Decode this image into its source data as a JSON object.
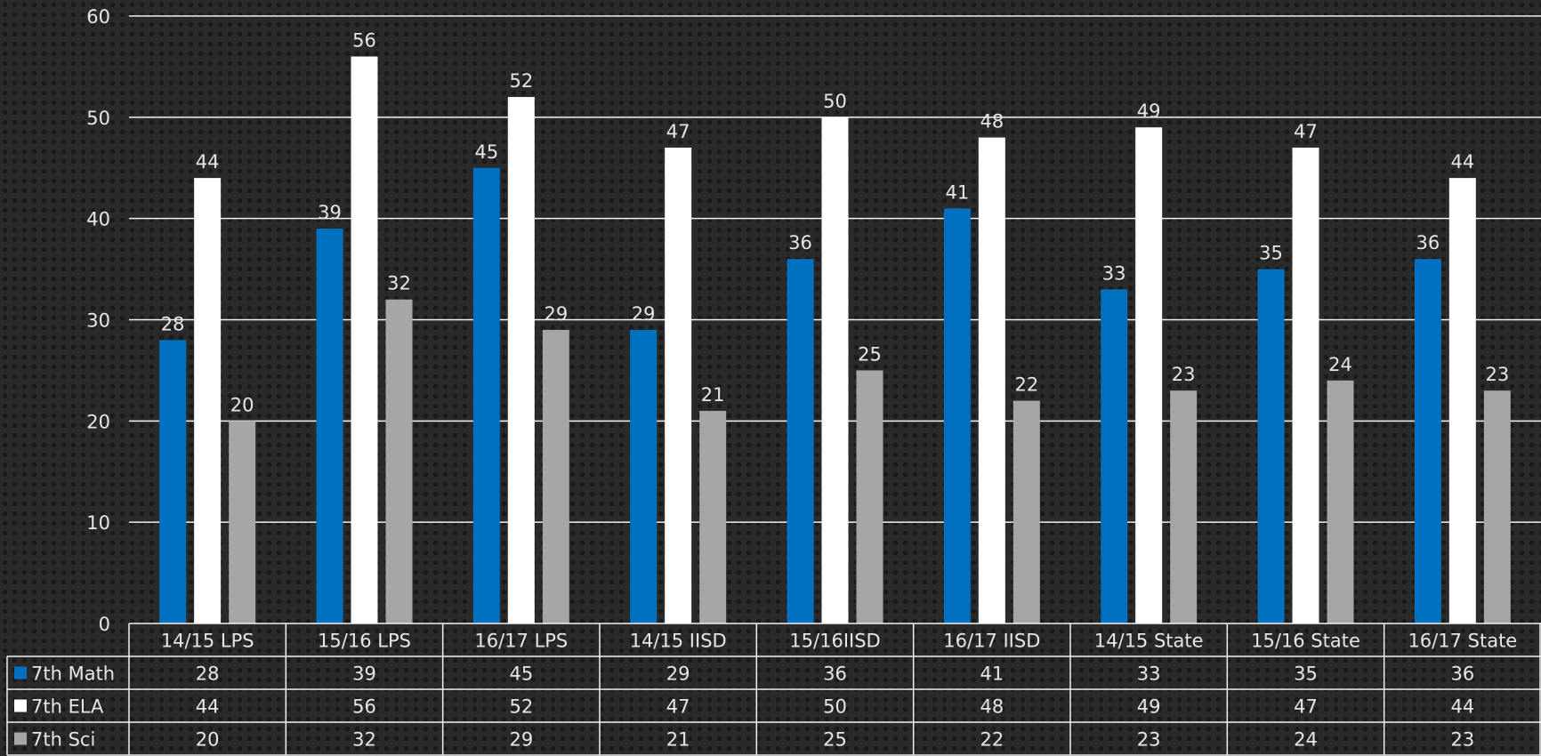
{
  "chart_data": {
    "type": "bar",
    "title": "",
    "xlabel": "",
    "ylabel": "",
    "ylim": [
      0,
      60
    ],
    "yticks": [
      0,
      10,
      20,
      30,
      40,
      50,
      60
    ],
    "grid": true,
    "legend": "data-table-left",
    "categories": [
      "14/15 LPS",
      "15/16 LPS",
      "16/17 LPS",
      "14/15 IISD",
      "15/16IISD",
      "16/17 IISD",
      "14/15 State",
      "15/16 State",
      "16/17 State"
    ],
    "series": [
      {
        "name": "7th Math",
        "color": "#0070c0",
        "values": [
          28,
          39,
          45,
          29,
          36,
          41,
          33,
          35,
          36
        ]
      },
      {
        "name": "7th ELA",
        "color": "#ffffff",
        "values": [
          44,
          56,
          52,
          47,
          50,
          48,
          49,
          47,
          44
        ]
      },
      {
        "name": "7th Sci",
        "color": "#a6a6a6",
        "values": [
          20,
          32,
          29,
          21,
          25,
          22,
          23,
          24,
          23
        ]
      }
    ]
  }
}
